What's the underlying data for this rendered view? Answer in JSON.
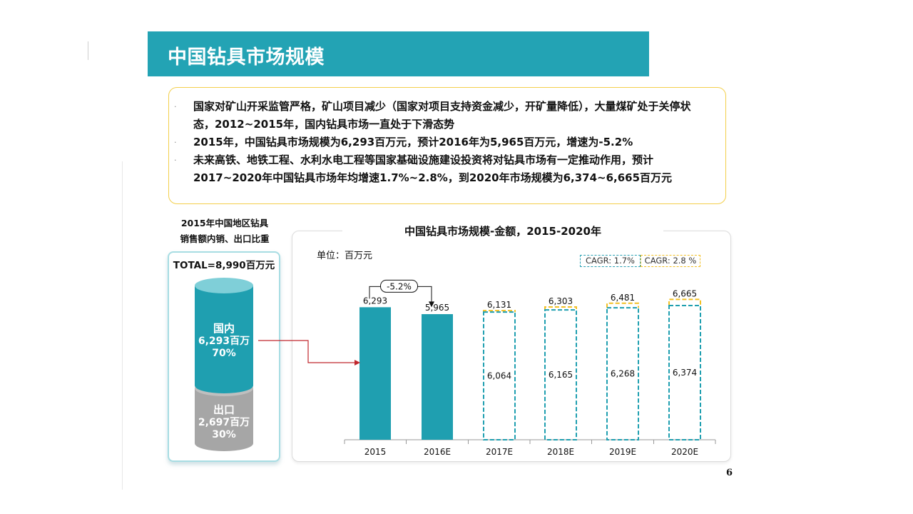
{
  "slide": {
    "title": "中国钻具市场规模",
    "page_number": "6"
  },
  "bullets": [
    "国家对矿山开采监管严格，矿山项目减少（国家对项目支持资金减少，开矿量降低），大量煤矿处于关停状态，2012~2015年，国内钻具市场一直处于下滑态势",
    "2015年，中国钻具市场规模为6,293百万元，预计2016年为5,965百万元，增速为-5.2%",
    "未来高铁、地铁工程、水利水电工程等国家基础设施建设投资将对钻具市场有一定推动作用，预计2017~2020年中国钻具市场年均增速1.7%~2.8%，到2020年市场规模为6,374~6,665百万元"
  ],
  "bullet_marker": "·",
  "left_panel": {
    "caption_line1": "2015年中国地区钻具",
    "caption_line2": "销售额内销、出口比重",
    "total": "TOTAL=8,990百万元",
    "domestic": {
      "label": "国内",
      "value": "6,293百万",
      "share": "70%",
      "color": "#1f9fb0"
    },
    "export": {
      "label": "出口",
      "value": "2,697百万",
      "share": "30%",
      "color": "#a6a6a6"
    }
  },
  "colors": {
    "accent": "#23a3b4",
    "bar": "#1f9fb0",
    "forecast_high": "#f2c024",
    "arrow": "#c0272d",
    "box_border": "#f3cf4b"
  },
  "chart_data": {
    "type": "bar",
    "title": "中国钻具市场规模-金额，2015-2020年",
    "unit": "单位：百万元",
    "categories": [
      "2015",
      "2016E",
      "2017E",
      "2018E",
      "2019E",
      "2020E"
    ],
    "actual": [
      6293,
      5965,
      null,
      null,
      null,
      null
    ],
    "actual_labels": [
      "6,293",
      "5,965",
      "",
      "",
      "",
      ""
    ],
    "forecast_low": [
      null,
      null,
      6064,
      6165,
      6268,
      6374
    ],
    "forecast_low_labels": [
      "",
      "",
      "6,064",
      "6,165",
      "6,268",
      "6,374"
    ],
    "forecast_high": [
      null,
      null,
      6131,
      6303,
      6481,
      6665
    ],
    "forecast_high_labels": [
      "",
      "",
      "6,131",
      "6,303",
      "6,481",
      "6,665"
    ],
    "growth_annotation": "-5.2%",
    "cagr_low": "CAGR: 1.7%",
    "cagr_high": "CAGR: 2.8 %"
  }
}
